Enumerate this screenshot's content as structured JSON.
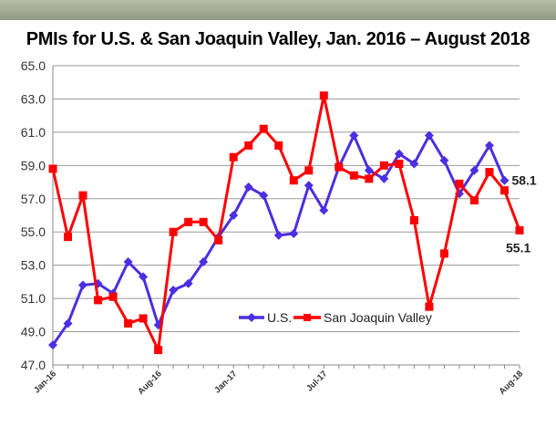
{
  "chart_data": {
    "type": "line",
    "title": "PMIs for U.S. & San Joaquin Valley,  Jan. 2016 – August 2018",
    "xlabel": "",
    "ylabel": "",
    "ylim": [
      47.0,
      65.0
    ],
    "y_ticks": [
      "47.0",
      "49.0",
      "51.0",
      "53.0",
      "55.0",
      "57.0",
      "59.0",
      "61.0",
      "63.0",
      "65.0"
    ],
    "x_tick_labels": [
      {
        "index": 0,
        "label": "Jan-16"
      },
      {
        "index": 7,
        "label": "Aug-16"
      },
      {
        "index": 12,
        "label": "Jan-17"
      },
      {
        "index": 18,
        "label": "Jul-17"
      },
      {
        "index": 31,
        "label": "Aug-18"
      }
    ],
    "grid": "horizontal",
    "legend_position": "bottom-center",
    "series": [
      {
        "name": "U.S.",
        "color": "#4b2fe0",
        "marker": "diamond",
        "values": [
          48.2,
          49.5,
          51.8,
          51.9,
          51.3,
          53.2,
          52.3,
          49.4,
          51.5,
          51.9,
          53.2,
          54.7,
          56.0,
          57.7,
          57.2,
          54.8,
          54.9,
          57.8,
          56.3,
          58.9,
          60.8,
          58.7,
          58.2,
          59.7,
          59.1,
          60.8,
          59.3,
          57.3,
          58.7,
          60.2,
          58.1
        ]
      },
      {
        "name": "San Joaquin Valley",
        "color": "#ff0000",
        "marker": "square",
        "values": [
          58.8,
          54.7,
          57.2,
          50.9,
          51.1,
          49.5,
          49.8,
          47.9,
          55.0,
          55.6,
          55.6,
          54.5,
          59.5,
          60.2,
          61.2,
          60.2,
          58.1,
          58.7,
          63.2,
          58.9,
          58.4,
          58.2,
          59.0,
          59.1,
          55.7,
          50.5,
          53.7,
          57.9,
          56.9,
          58.6,
          57.5,
          55.1
        ]
      }
    ],
    "annotations": [
      "58.1",
      "55.1"
    ]
  }
}
